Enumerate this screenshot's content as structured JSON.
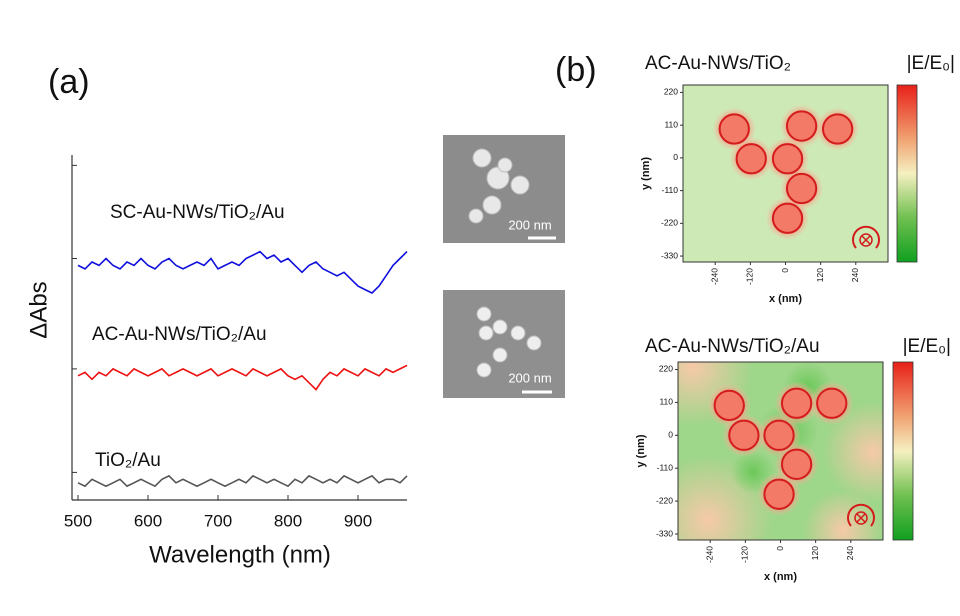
{
  "labels": [
    "(a)",
    "(b)"
  ],
  "sem_images": [
    {
      "scale_label": "200 nm"
    },
    {
      "scale_label": "200 nm"
    }
  ],
  "chart_data": [
    {
      "type": "line",
      "xlabel": "Wavelength (nm)",
      "ylabel": "ΔAbs",
      "xlim": [
        500,
        970
      ],
      "xticks": [
        500,
        600,
        700,
        800,
        900
      ],
      "ylim": [
        0,
        100
      ],
      "x": [
        500,
        510,
        520,
        530,
        540,
        550,
        560,
        570,
        580,
        590,
        600,
        610,
        620,
        630,
        640,
        650,
        660,
        670,
        680,
        690,
        700,
        710,
        720,
        730,
        740,
        750,
        760,
        770,
        780,
        790,
        800,
        810,
        820,
        830,
        840,
        850,
        860,
        870,
        880,
        890,
        900,
        910,
        920,
        930,
        940,
        950,
        960,
        970
      ],
      "series": [
        {
          "name": "SC-Au-NWs/TiO₂/Au",
          "color": "#1010dd",
          "values": [
            68,
            67,
            69,
            68,
            70,
            68,
            67,
            69,
            68,
            70,
            68,
            67,
            69,
            70,
            68,
            67,
            68,
            69,
            68,
            70,
            67,
            68,
            69,
            68,
            70,
            71,
            72,
            70,
            71,
            69,
            70,
            68,
            66,
            68,
            69,
            67,
            66,
            65,
            66,
            64,
            62,
            61,
            60,
            62,
            65,
            68,
            70,
            72
          ]
        },
        {
          "name": "AC-Au-NWs/TiO₂/Au",
          "color": "#ee1111",
          "values": [
            36,
            37,
            35,
            37,
            36,
            38,
            37,
            36,
            38,
            37,
            36,
            37,
            38,
            36,
            37,
            38,
            37,
            36,
            37,
            38,
            36,
            37,
            38,
            37,
            36,
            38,
            37,
            36,
            37,
            38,
            36,
            35,
            36,
            34,
            32,
            35,
            37,
            36,
            38,
            37,
            36,
            38,
            37,
            36,
            38,
            37,
            38,
            39
          ]
        },
        {
          "name": "TiO₂/Au",
          "color": "#555555",
          "values": [
            5,
            4,
            6,
            5,
            4,
            5,
            6,
            4,
            5,
            6,
            5,
            4,
            6,
            7,
            5,
            6,
            5,
            4,
            5,
            6,
            5,
            4,
            5,
            6,
            5,
            7,
            6,
            5,
            6,
            5,
            4,
            6,
            5,
            7,
            6,
            5,
            6,
            5,
            7,
            6,
            5,
            6,
            7,
            5,
            6,
            6,
            5,
            7
          ]
        }
      ]
    },
    {
      "type": "field-map",
      "title": "AC-Au-NWs/TiO₂",
      "colorbar_label": "|E/E₀|",
      "xlabel": "x (nm)",
      "ylabel": "y (nm)",
      "xlim": [
        -350,
        350
      ],
      "ylim": [
        -350,
        245
      ],
      "xticks": [
        -240,
        -120,
        0,
        120,
        240
      ],
      "yticks": [
        220,
        110,
        0,
        -110,
        -220,
        -330
      ],
      "x": [
        -175,
        -117,
        7,
        55,
        178,
        55,
        7
      ],
      "y": [
        97,
        -3,
        -3,
        107,
        97,
        -103,
        -203
      ]
    },
    {
      "type": "field-map",
      "title": "AC-Au-NWs/TiO₂/Au",
      "colorbar_label": "|E/E₀|",
      "xlabel": "x (nm)",
      "ylabel": "y (nm)",
      "xlim": [
        -350,
        350
      ],
      "ylim": [
        -350,
        245
      ],
      "xticks": [
        -240,
        -120,
        0,
        120,
        240
      ],
      "yticks": [
        220,
        110,
        0,
        -110,
        -220,
        -330
      ],
      "x": [
        -175,
        -125,
        -5,
        55,
        175,
        55,
        -5
      ],
      "y": [
        100,
        0,
        0,
        107,
        107,
        -97,
        -197
      ]
    }
  ]
}
